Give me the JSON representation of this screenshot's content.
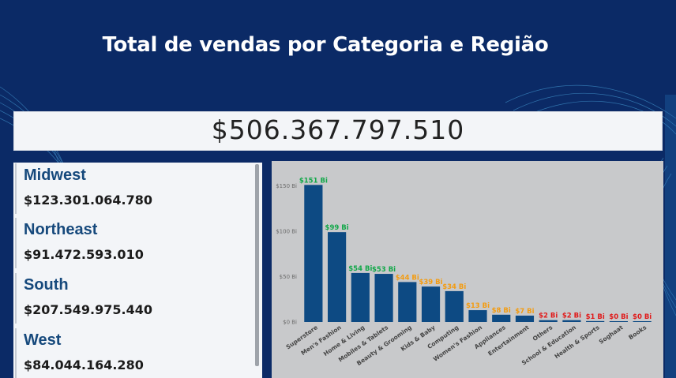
{
  "header": {
    "title": "Total de vendas por Categoria e Região"
  },
  "kpi": {
    "total": "$506.367.797.510"
  },
  "regions": [
    {
      "name": "Midwest",
      "value": "$123.301.064.780"
    },
    {
      "name": "Northeast",
      "value": "$91.472.593.010"
    },
    {
      "name": "South",
      "value": "$207.549.975.440"
    },
    {
      "name": "West",
      "value": "$84.044.164.280"
    }
  ],
  "chart_data": {
    "type": "bar",
    "categories": [
      "Superstore",
      "Men's Fashion",
      "Home & Living",
      "Mobiles & Tablets",
      "Beauty & Grooming",
      "Kids & Baby",
      "Computing",
      "Women's Fashion",
      "Appliances",
      "Entertainment",
      "Others",
      "School & Education",
      "Health & Sports",
      "Soghaat",
      "Books"
    ],
    "values": [
      151,
      99,
      54,
      53,
      44,
      39,
      34,
      13,
      8,
      7,
      2,
      2,
      1,
      0,
      0
    ],
    "data_labels": [
      "$151 Bi",
      "$99 Bi",
      "$54 Bi",
      "$53 Bi",
      "$44 Bi",
      "$39 Bi",
      "$34 Bi",
      "$13 Bi",
      "$8 Bi",
      "$7 Bi",
      "$2 Bi",
      "$2 Bi",
      "$1 Bi",
      "$0 Bi",
      "$0 Bi"
    ],
    "label_colors": [
      "#13a84a",
      "#13a84a",
      "#13a84a",
      "#13a84a",
      "#f39c12",
      "#f39c12",
      "#f39c12",
      "#f39c12",
      "#f39c12",
      "#f39c12",
      "#e01b1b",
      "#e01b1b",
      "#e01b1b",
      "#e01b1b",
      "#e01b1b"
    ],
    "y_ticks": [
      {
        "value": 0,
        "label": "$0 Bi"
      },
      {
        "value": 50,
        "label": "$50 Bi"
      },
      {
        "value": 100,
        "label": "$100 Bi"
      },
      {
        "value": 150,
        "label": "$150 Bi"
      }
    ],
    "ylim": [
      0,
      160
    ],
    "bar_color": "#0d4a83",
    "title": "",
    "xlabel": "",
    "ylabel": ""
  }
}
